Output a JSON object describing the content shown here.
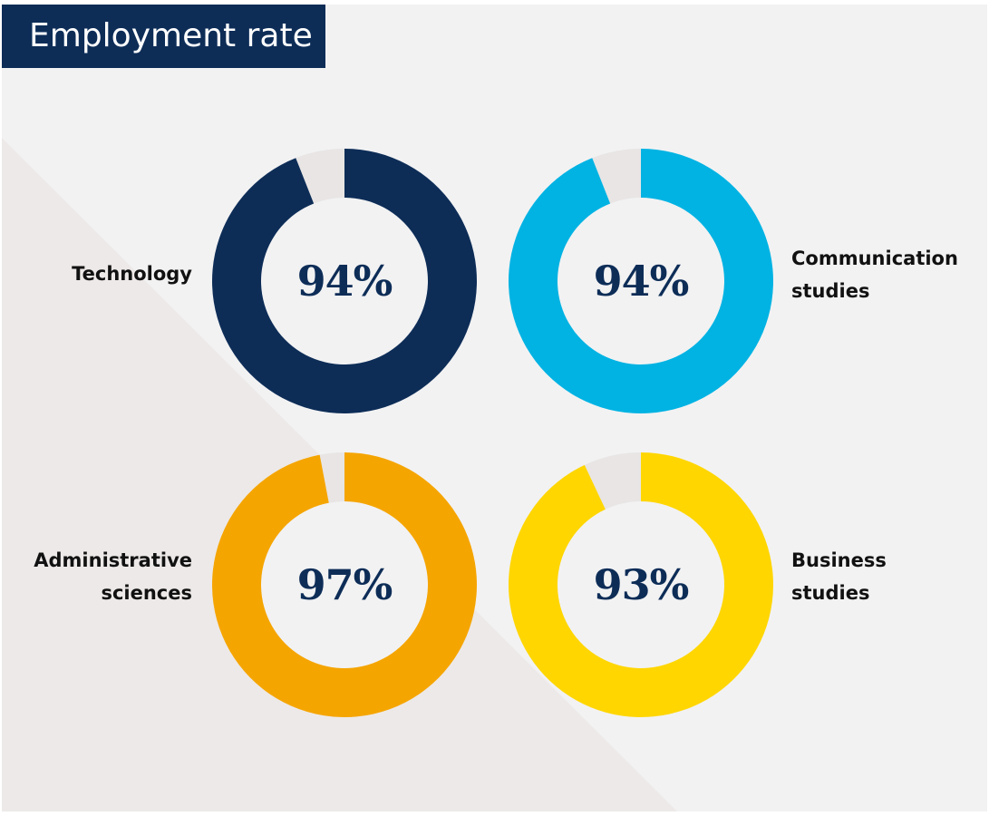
{
  "title": "Employment rate",
  "colors": {
    "background": "#f2f2f3",
    "diagonal_shade": "#ede9e8",
    "remainder": "#e8e5e4",
    "value_text": "#0d2d57"
  },
  "chart_data": {
    "type": "pie",
    "subtype": "donut",
    "charts": [
      {
        "name": "Technology",
        "label_lines": [
          "Technology"
        ],
        "value": 94,
        "value_label": "94%",
        "color": "#0d2d57",
        "label_side": "left"
      },
      {
        "name": "Communication studies",
        "label_lines": [
          "Communication",
          "studies"
        ],
        "value": 94,
        "value_label": "94%",
        "color": "#00b3e3",
        "label_side": "right"
      },
      {
        "name": "Administrative sciences",
        "label_lines": [
          "Administrative",
          "sciences"
        ],
        "value": 97,
        "value_label": "97%",
        "color": "#f5a500",
        "label_side": "left"
      },
      {
        "name": "Business studies",
        "label_lines": [
          "Business",
          "studies"
        ],
        "value": 93,
        "value_label": "93%",
        "color": "#ffd600",
        "label_side": "right"
      }
    ]
  }
}
